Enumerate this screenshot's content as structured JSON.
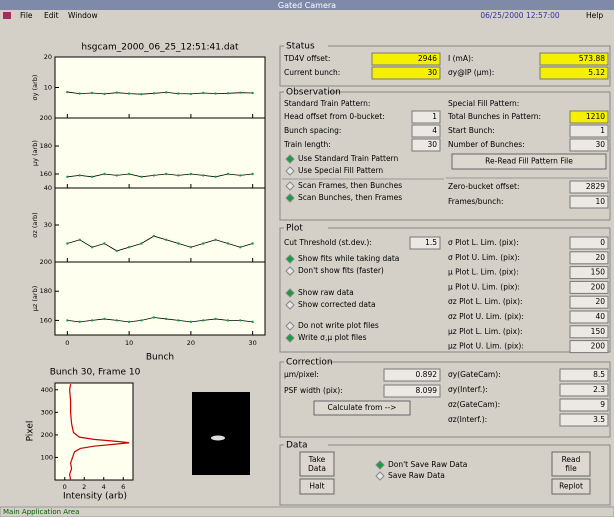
{
  "window": {
    "title": "Gated Camera",
    "menu": [
      "File",
      "Edit",
      "Window"
    ],
    "datetime": "06/25/2000 12:57:00",
    "help": "Help",
    "statusbar": "Main Application Area"
  },
  "status": {
    "title": "Status",
    "fields": [
      {
        "label": "TD4V offset:",
        "value": 2946
      },
      {
        "label": "Current bunch:",
        "value": 30
      },
      {
        "label": "I (mA):",
        "value": 573.88
      },
      {
        "label": "σy@IP (μm):",
        "value": 5.12
      }
    ]
  },
  "observation": {
    "title": "Observation",
    "left_heading": "Standard Train Pattern:",
    "left_fields": [
      {
        "label": "Head offset from 0-bucket:",
        "value": 1
      },
      {
        "label": "Bunch spacing:",
        "value": 4
      },
      {
        "label": "Train length:",
        "value": 30
      }
    ],
    "radios": [
      {
        "label": "Use Standard Train Pattern",
        "selected": true
      },
      {
        "label": "Use Special Fill Pattern",
        "selected": false
      },
      {
        "label": "Scan Frames, then Bunches",
        "selected": false
      },
      {
        "label": "Scan Bunches, then Frames",
        "selected": true
      }
    ],
    "right_heading": "Special Fill Pattern:",
    "right_fields": [
      {
        "label": "Total Bunches in Pattern:",
        "value": 1210
      },
      {
        "label": "Start Bunch:",
        "value": 1
      },
      {
        "label": "Number of Bunches:",
        "value": 30
      }
    ],
    "button": "Re-Read Fill Pattern File",
    "lower_fields": [
      {
        "label": "Zero-bucket offset:",
        "value": 2829
      },
      {
        "label": "Frames/bunch:",
        "value": 10
      }
    ]
  },
  "plot": {
    "title": "Plot",
    "threshold": {
      "label": "Cut Threshold (st.dev.):",
      "value": 1.5
    },
    "radios": [
      {
        "label": "Show fits while taking data",
        "selected": true
      },
      {
        "label": "Don't show fits (faster)",
        "selected": false
      },
      {
        "label": "Show raw data",
        "selected": true
      },
      {
        "label": "Show corrected data",
        "selected": false
      },
      {
        "label": "Do not write plot files",
        "selected": false
      },
      {
        "label": "Write σ,μ plot files",
        "selected": true
      }
    ],
    "fields": [
      {
        "label": "σ Plot L. Lim. (pix):",
        "value": 0
      },
      {
        "label": "σ Plot U. Lim. (pix):",
        "value": 20
      },
      {
        "label": "μ Plot L. Lim. (pix):",
        "value": 150
      },
      {
        "label": "μ Plot U. Lim. (pix):",
        "value": 200
      },
      {
        "label": "σz Plot L. Lim. (pix):",
        "value": 20
      },
      {
        "label": "σz Plot U. Lim. (pix):",
        "value": 40
      },
      {
        "label": "μz Plot L. Lim. (pix):",
        "value": 150
      },
      {
        "label": "μz Plot U. Lim. (pix):",
        "value": 200
      }
    ]
  },
  "correction": {
    "title": "Correction",
    "left_fields": [
      {
        "label": "μm/pixel:",
        "value": 0.892
      },
      {
        "label": "PSF width (pix):",
        "value": 8.099
      }
    ],
    "button": "Calculate from -->",
    "right_fields": [
      {
        "label": "σy(GateCam):",
        "value": 8.5
      },
      {
        "label": "σy(Interf.):",
        "value": 2.3
      },
      {
        "label": "σz(GateCam):",
        "value": 9
      },
      {
        "label": "σz(Interf.):",
        "value": 3.5
      }
    ]
  },
  "data": {
    "title": "Data",
    "buttons": [
      "Take Data",
      "Halt",
      "Read file",
      "Replot"
    ],
    "radios": [
      {
        "label": "Don't Save Raw Data",
        "selected": true
      },
      {
        "label": "Save Raw Data",
        "selected": false
      }
    ]
  },
  "chart_data": [
    {
      "type": "line",
      "title": "hsgcam_2000_06_25_12:51:41.dat",
      "x_label": "Bunch",
      "xlim": [
        -2,
        32
      ],
      "xticks": [
        0,
        10,
        20,
        30
      ],
      "x": [
        0,
        2,
        4,
        6,
        8,
        10,
        12,
        14,
        16,
        18,
        20,
        22,
        24,
        26,
        28,
        30
      ],
      "color": "#000000",
      "panels": [
        {
          "y_label": "σy (arb)",
          "ylim": [
            0,
            20
          ],
          "yticks": [
            10,
            20
          ],
          "values": [
            8.5,
            8,
            8.2,
            7.9,
            8.3,
            8,
            7.8,
            8.1,
            8.4,
            8,
            7.9,
            8.2,
            8,
            8.1,
            8.3,
            8.2
          ]
        },
        {
          "y_label": "μy (arb)",
          "ylim": [
            150,
            200
          ],
          "yticks": [
            160,
            180,
            200
          ],
          "values": [
            158,
            159,
            158,
            160,
            159,
            160,
            158,
            159,
            160,
            159,
            160,
            159,
            158,
            160,
            159,
            160
          ]
        },
        {
          "y_label": "σz (arb)",
          "ylim": [
            20,
            40
          ],
          "yticks": [
            30,
            40
          ],
          "values": [
            25,
            26,
            24,
            25,
            23,
            24,
            25,
            27,
            26,
            25,
            24,
            25,
            26,
            25,
            24,
            25
          ]
        },
        {
          "y_label": "μz (arb)",
          "ylim": [
            150,
            200
          ],
          "yticks": [
            160,
            180,
            200
          ],
          "values": [
            160,
            159,
            160,
            161,
            160,
            159,
            160,
            162,
            161,
            160,
            159,
            160,
            161,
            160,
            160,
            159
          ]
        }
      ]
    },
    {
      "type": "line",
      "title": "Bunch 30, Frame 10",
      "x_label": "Intensity (arb)",
      "y_label": "Pixel",
      "xlim": [
        -1,
        7
      ],
      "xticks": [
        0,
        2,
        4,
        6
      ],
      "ylim": [
        0,
        430
      ],
      "yticks": [
        100,
        200,
        300,
        400
      ],
      "color": "#cc0000",
      "y": [
        0,
        25,
        50,
        75,
        100,
        125,
        140,
        150,
        160,
        165,
        170,
        180,
        190,
        210,
        250,
        300,
        350,
        400,
        425
      ],
      "x": [
        0.6,
        0.5,
        0.7,
        0.6,
        0.8,
        1,
        1.6,
        3,
        5.5,
        6.6,
        5.6,
        3,
        1.5,
        0.9,
        0.7,
        0.6,
        0.6,
        0.5,
        0.6
      ]
    }
  ]
}
